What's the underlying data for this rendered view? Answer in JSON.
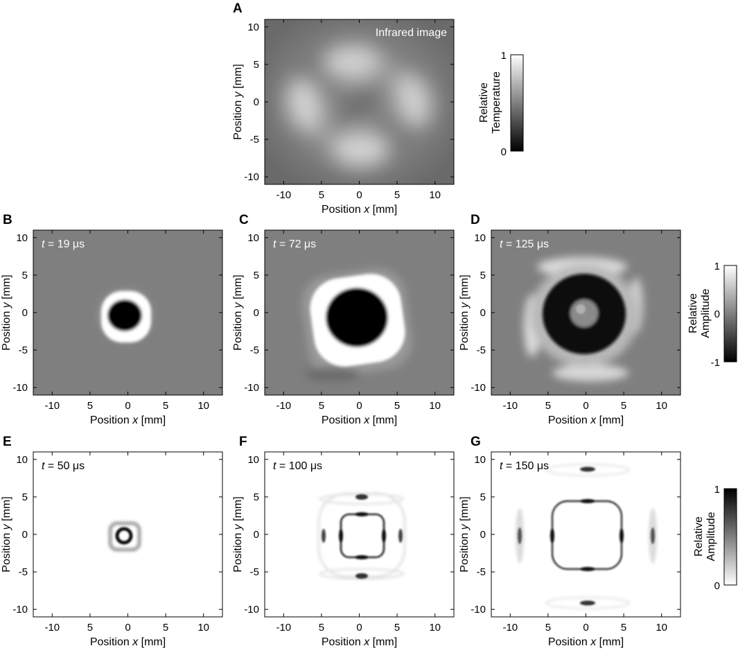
{
  "colors": {
    "background_gray": "#7f7f7f",
    "white": "#ffffff",
    "black": "#000000",
    "axis": "#000000"
  },
  "axes": {
    "x_label_prefix": "Position ",
    "x_label_var": "x",
    "x_label_unit": " [mm]",
    "y_label_prefix": "Position ",
    "y_label_var": "y",
    "y_label_unit": " [mm]",
    "x_ticks": [
      "-10",
      "5",
      "0",
      "5",
      "10"
    ],
    "y_ticks": [
      "10",
      "5",
      "0",
      "-5",
      "-10"
    ]
  },
  "panels": [
    {
      "id": "A",
      "annotation": "Infrared image",
      "kind": "infrared"
    },
    {
      "id": "B",
      "t_var": "t",
      "t_value": " = 19 μs",
      "kind": "meas"
    },
    {
      "id": "C",
      "t_var": "t",
      "t_value": " = 72 μs",
      "kind": "meas"
    },
    {
      "id": "D",
      "t_var": "t",
      "t_value": " = 125 μs",
      "kind": "meas"
    },
    {
      "id": "E",
      "t_var": "t",
      "t_value": " = 50 μs",
      "kind": "sim"
    },
    {
      "id": "F",
      "t_var": "t",
      "t_value": " = 100 μs",
      "kind": "sim"
    },
    {
      "id": "G",
      "t_var": "t",
      "t_value": " = 150 μs",
      "kind": "sim"
    }
  ],
  "colorbars": {
    "temperature": {
      "label_line1": "Relative",
      "label_line2": "Temperature",
      "max": "1",
      "min": "0"
    },
    "amplitude_signed": {
      "label_line1": "Relative",
      "label_line2": "Amplitude",
      "max": "1",
      "mid": "0",
      "min": "-1"
    },
    "amplitude": {
      "label_line1": "Relative",
      "label_line2": "Amplitude",
      "max": "1",
      "min": "0"
    }
  }
}
